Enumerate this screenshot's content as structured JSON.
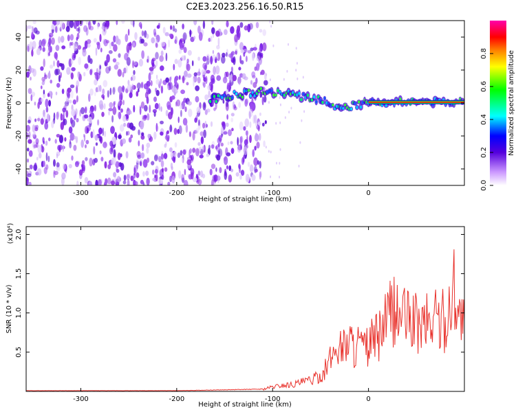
{
  "title": "C2E3.2023.256.16.50.R15",
  "chart_data": [
    {
      "type": "heatmap",
      "xlabel": "Height of straight line (km)",
      "ylabel": "Frequency (Hz)",
      "xlim": [
        -357,
        100
      ],
      "ylim": [
        -50,
        50
      ],
      "xticks": [
        -300,
        -200,
        -100,
        0
      ],
      "yticks": [
        -40,
        -20,
        0,
        20,
        40
      ],
      "colorbar": {
        "label": "Normalized spectral amplitude",
        "range": [
          0,
          1
        ],
        "ticks": [
          0.0,
          0.2,
          0.4,
          0.6,
          0.8
        ]
      },
      "features": [
        {
          "description": "broadband noise region",
          "x_range": [
            -357,
            -107
          ],
          "y_range": [
            -50,
            50
          ],
          "amplitude": 0.05
        },
        {
          "description": "signal trace",
          "points": [
            [
              -165,
              2
            ],
            [
              -140,
              5
            ],
            [
              -110,
              7
            ],
            [
              -90,
              6
            ],
            [
              -70,
              4
            ],
            [
              -50,
              2
            ],
            [
              -35,
              -2
            ],
            [
              -20,
              -2
            ],
            [
              -10,
              -1
            ],
            [
              0,
              1
            ],
            [
              10,
              0.5
            ],
            [
              50,
              0.5
            ],
            [
              100,
              0.5
            ]
          ]
        },
        {
          "description": "high amplitude band",
          "x_range": [
            0,
            100
          ],
          "y": 0.5,
          "amplitude": 0.95
        }
      ]
    },
    {
      "type": "line",
      "xlabel": "Height of straight line (km)",
      "ylabel": "SNR (10 * v/v)",
      "y_multiplier": "(x10⁴)",
      "xlim": [
        -357,
        100
      ],
      "ylim": [
        0,
        2.1
      ],
      "xticks": [
        -300,
        -200,
        -100,
        0
      ],
      "yticks": [
        0.5,
        1.0,
        1.5,
        2.0
      ],
      "color": "#e8302a",
      "series": [
        {
          "name": "",
          "x": [
            -357,
            -300,
            -250,
            -200,
            -150,
            -110,
            -100,
            -90,
            -80,
            -70,
            -60,
            -50,
            -45,
            -40,
            -35,
            -30,
            -25,
            -20,
            -15,
            -10,
            -5,
            0,
            5,
            10,
            15,
            20,
            25,
            30,
            35,
            40,
            45,
            50,
            55,
            60,
            65,
            70,
            75,
            80,
            85,
            90,
            95,
            100
          ],
          "y": [
            0.01,
            0.01,
            0.01,
            0.01,
            0.02,
            0.03,
            0.06,
            0.08,
            0.09,
            0.12,
            0.15,
            0.2,
            0.3,
            0.42,
            0.55,
            0.62,
            0.6,
            0.72,
            0.58,
            0.65,
            0.55,
            0.6,
            0.7,
            0.72,
            0.85,
            0.95,
            1.1,
            1.0,
            1.05,
            0.95,
            0.98,
            0.9,
            0.88,
            0.95,
            0.9,
            1.05,
            0.92,
            0.95,
            1.1,
            1.5,
            1.0,
            0.9
          ]
        }
      ]
    }
  ]
}
